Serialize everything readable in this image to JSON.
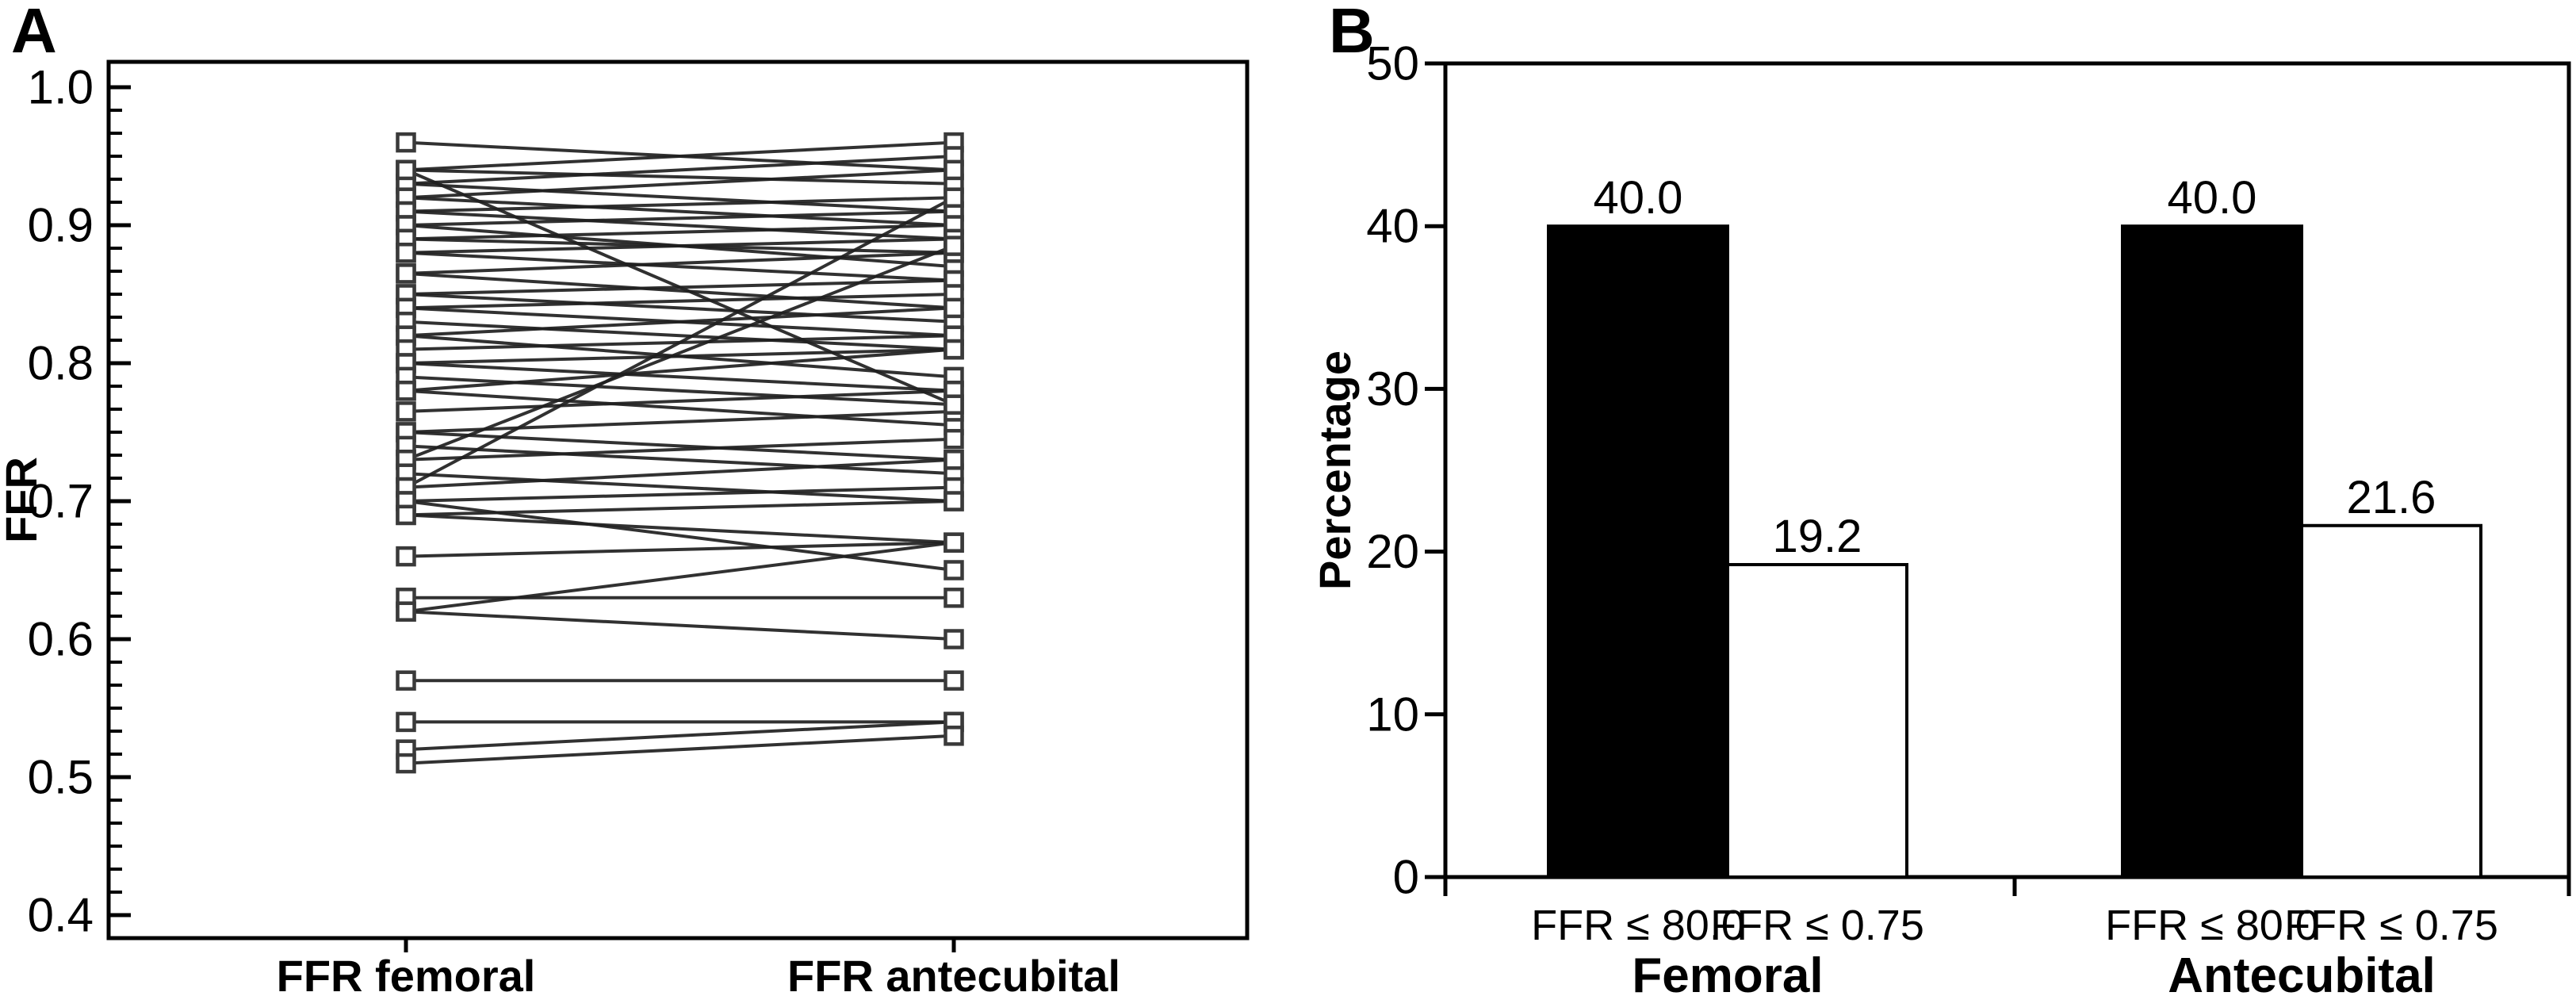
{
  "colors": {
    "background": "#ffffff",
    "axis": "#000000",
    "text": "#000000",
    "pair_line": "#1f1f1f",
    "marker_fill": "#ffffff",
    "marker_stroke": "#3a3a3a",
    "bar_black": "#000000",
    "bar_white": "#ffffff",
    "bar_outline": "#000000"
  },
  "chart_data": [
    {
      "panel": "A",
      "type": "slope",
      "title": "",
      "ylabel": "FFR",
      "ylim": [
        0.4,
        1.0
      ],
      "y_ticks": [
        {
          "value": 1.0,
          "label": "1.0"
        },
        {
          "value": 0.9,
          "label": "0.9"
        },
        {
          "value": 0.8,
          "label": "0.8"
        },
        {
          "value": 0.7,
          "label": "0.7"
        },
        {
          "value": 0.6,
          "label": "0.6"
        },
        {
          "value": 0.5,
          "label": "0.5"
        },
        {
          "value": 0.4,
          "label": "0.4"
        }
      ],
      "minor_ticks_per_interval": 5,
      "categories": [
        "FFR femoral",
        "FFR antecubital"
      ],
      "pairs_note": "each pair = [FFR femoral, FFR antecubital], values estimated from plot",
      "pairs": [
        [
          0.96,
          0.94
        ],
        [
          0.94,
          0.96
        ],
        [
          0.94,
          0.93
        ],
        [
          0.93,
          0.95
        ],
        [
          0.93,
          0.91
        ],
        [
          0.92,
          0.94
        ],
        [
          0.92,
          0.9
        ],
        [
          0.91,
          0.92
        ],
        [
          0.91,
          0.89
        ],
        [
          0.9,
          0.91
        ],
        [
          0.9,
          0.87
        ],
        [
          0.89,
          0.9
        ],
        [
          0.89,
          0.88
        ],
        [
          0.88,
          0.89
        ],
        [
          0.88,
          0.86
        ],
        [
          0.865,
          0.88
        ],
        [
          0.865,
          0.84
        ],
        [
          0.85,
          0.86
        ],
        [
          0.85,
          0.83
        ],
        [
          0.84,
          0.85
        ],
        [
          0.84,
          0.82
        ],
        [
          0.83,
          0.81
        ],
        [
          0.82,
          0.84
        ],
        [
          0.82,
          0.79
        ],
        [
          0.81,
          0.82
        ],
        [
          0.8,
          0.81
        ],
        [
          0.8,
          0.78
        ],
        [
          0.79,
          0.77
        ],
        [
          0.78,
          0.81
        ],
        [
          0.78,
          0.755
        ],
        [
          0.765,
          0.78
        ],
        [
          0.75,
          0.765
        ],
        [
          0.75,
          0.73
        ],
        [
          0.74,
          0.72
        ],
        [
          0.73,
          0.885
        ],
        [
          0.73,
          0.745
        ],
        [
          0.72,
          0.7
        ],
        [
          0.71,
          0.92
        ],
        [
          0.94,
          0.77
        ],
        [
          0.71,
          0.73
        ],
        [
          0.7,
          0.71
        ],
        [
          0.7,
          0.65
        ],
        [
          0.69,
          0.7
        ],
        [
          0.69,
          0.67
        ],
        [
          0.66,
          0.67
        ],
        [
          0.63,
          0.63
        ],
        [
          0.62,
          0.67
        ],
        [
          0.62,
          0.6
        ],
        [
          0.57,
          0.57
        ],
        [
          0.54,
          0.54
        ],
        [
          0.52,
          0.54
        ],
        [
          0.51,
          0.53
        ]
      ]
    },
    {
      "panel": "B",
      "type": "bar",
      "title": "",
      "ylabel": "Percentage",
      "ylim": [
        0,
        50
      ],
      "y_ticks": [
        {
          "value": 50,
          "label": "50"
        },
        {
          "value": 40,
          "label": "40"
        },
        {
          "value": 30,
          "label": "30"
        },
        {
          "value": 20,
          "label": "20"
        },
        {
          "value": 10,
          "label": "10"
        },
        {
          "value": 0,
          "label": "0"
        }
      ],
      "groups": [
        {
          "label": "Femoral",
          "bars": [
            {
              "label": "FFR ≤ 80.0",
              "value": 40.0,
              "display": "40.0",
              "fill": "#000000"
            },
            {
              "label": "FFR ≤ 0.75",
              "value": 19.2,
              "display": "19.2",
              "fill": "#ffffff"
            }
          ]
        },
        {
          "label": "Antecubital",
          "bars": [
            {
              "label": "FFR ≤ 80.0",
              "value": 40.0,
              "display": "40.0",
              "fill": "#000000"
            },
            {
              "label": "FFR ≤ 0.75",
              "value": 21.6,
              "display": "21.6",
              "fill": "#ffffff"
            }
          ]
        }
      ]
    }
  ]
}
